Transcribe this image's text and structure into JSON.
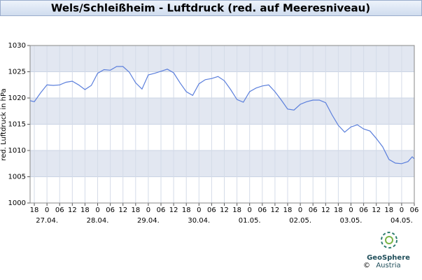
{
  "chart_data": {
    "type": "line",
    "title": "Wels/Schleißheim - Luftdruck (red. auf Meeresniveau)",
    "y_label": "red. Luftdruck in hPa",
    "x": [
      -8,
      -6,
      -3,
      0,
      3,
      6,
      9,
      12,
      15,
      18,
      21,
      24,
      27,
      30,
      33,
      36,
      39,
      42,
      45,
      48,
      51,
      54,
      57,
      60,
      63,
      66,
      69,
      72,
      75,
      78,
      81,
      84,
      87,
      90,
      93,
      96,
      99,
      102,
      105,
      108,
      111,
      114,
      117,
      120,
      123,
      126,
      129,
      132,
      135,
      138,
      141,
      144,
      147,
      150,
      153,
      156,
      159,
      162,
      165,
      168,
      171,
      173,
      174
    ],
    "series": [
      {
        "name": "Luftdruck",
        "color": "#5b7fdc",
        "values": [
          1019.5,
          1019.3,
          1021,
          1022.5,
          1022.4,
          1022.5,
          1023,
          1023.2,
          1022.5,
          1021.6,
          1022.4,
          1024.7,
          1025.4,
          1025.3,
          1026,
          1026,
          1024.9,
          1022.9,
          1021.7,
          1024.4,
          1024.7,
          1025.1,
          1025.5,
          1024.8,
          1022.9,
          1021.2,
          1020.5,
          1022.7,
          1023.5,
          1023.7,
          1024.1,
          1023.3,
          1021.6,
          1019.7,
          1019.2,
          1021.2,
          1021.9,
          1022.3,
          1022.5,
          1021.2,
          1019.6,
          1017.9,
          1017.7,
          1018.8,
          1019.3,
          1019.6,
          1019.6,
          1019.1,
          1016.8,
          1014.8,
          1013.5,
          1014.5,
          1014.9,
          1014.1,
          1013.7,
          1012.3,
          1010.7,
          1008.3,
          1007.6,
          1007.5,
          1007.9,
          1008.8,
          1008.4
        ]
      }
    ],
    "xlim": [
      -8,
      174
    ],
    "xticks": [
      {
        "value": -6,
        "label": "18"
      },
      {
        "value": 0,
        "label": "0"
      },
      {
        "value": 6,
        "label": "06"
      },
      {
        "value": 12,
        "label": "12"
      },
      {
        "value": 18,
        "label": "18"
      },
      {
        "value": 24,
        "label": "0"
      },
      {
        "value": 30,
        "label": "06"
      },
      {
        "value": 36,
        "label": "12"
      },
      {
        "value": 42,
        "label": "18"
      },
      {
        "value": 48,
        "label": "0"
      },
      {
        "value": 54,
        "label": "06"
      },
      {
        "value": 60,
        "label": "12"
      },
      {
        "value": 66,
        "label": "18"
      },
      {
        "value": 72,
        "label": "0"
      },
      {
        "value": 78,
        "label": "06"
      },
      {
        "value": 84,
        "label": "12"
      },
      {
        "value": 90,
        "label": "18"
      },
      {
        "value": 96,
        "label": "0"
      },
      {
        "value": 102,
        "label": "06"
      },
      {
        "value": 108,
        "label": "12"
      },
      {
        "value": 114,
        "label": "18"
      },
      {
        "value": 120,
        "label": "0"
      },
      {
        "value": 126,
        "label": "06"
      },
      {
        "value": 132,
        "label": "12"
      },
      {
        "value": 138,
        "label": "18"
      },
      {
        "value": 144,
        "label": "0"
      },
      {
        "value": 150,
        "label": "06"
      },
      {
        "value": 156,
        "label": "12"
      },
      {
        "value": 162,
        "label": "18"
      },
      {
        "value": 168,
        "label": "0"
      },
      {
        "value": 174,
        "label": "06"
      }
    ],
    "date_labels": [
      {
        "value": 0,
        "label": "27.04."
      },
      {
        "value": 24,
        "label": "28.04."
      },
      {
        "value": 48,
        "label": "29.04."
      },
      {
        "value": 72,
        "label": "30.04."
      },
      {
        "value": 96,
        "label": "01.05."
      },
      {
        "value": 120,
        "label": "02.05."
      },
      {
        "value": 144,
        "label": "03.05."
      },
      {
        "value": 168,
        "label": "04.05."
      }
    ],
    "ylim": [
      1000,
      1030
    ],
    "yticks": [
      1000,
      1005,
      1010,
      1015,
      1020,
      1025,
      1030
    ],
    "grid": true,
    "logo": {
      "name": "GeoSphere",
      "sub": "Austria",
      "copyright": "©"
    }
  }
}
